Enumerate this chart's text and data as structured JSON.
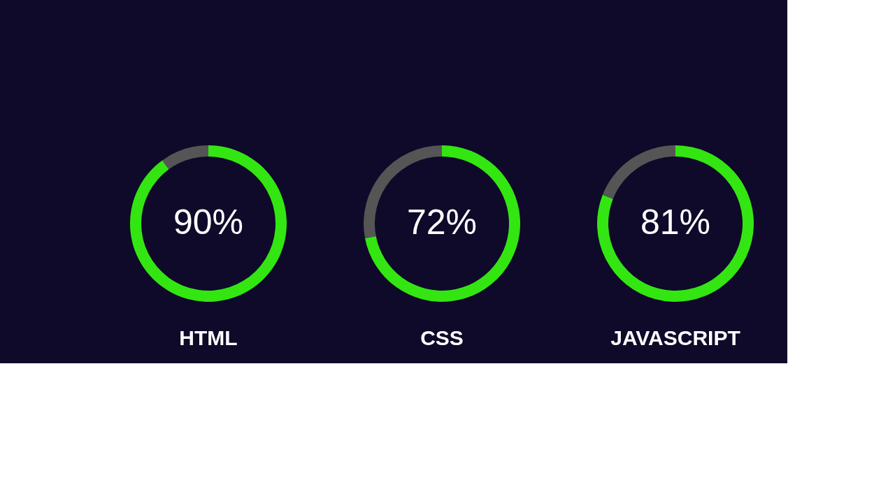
{
  "chart_data": [
    {
      "type": "donut",
      "title": "HTML",
      "categories": [
        null,
        null
      ],
      "values": [
        90,
        10
      ],
      "colors": [
        "#33e612",
        "#555555"
      ],
      "value_labels": [
        "90%",
        null
      ]
    },
    {
      "type": "donut",
      "title": "CSS",
      "categories": [
        null,
        null
      ],
      "values": [
        72,
        28
      ],
      "colors": [
        "#33e612",
        "#555555"
      ],
      "value_labels": [
        "72%",
        null
      ]
    },
    {
      "type": "donut",
      "title": "JAVASCRIPT",
      "categories": [
        null,
        null
      ],
      "values": [
        81,
        19
      ],
      "colors": [
        "#33e612",
        "#555555"
      ],
      "value_labels": [
        "81%",
        null
      ]
    }
  ]
}
